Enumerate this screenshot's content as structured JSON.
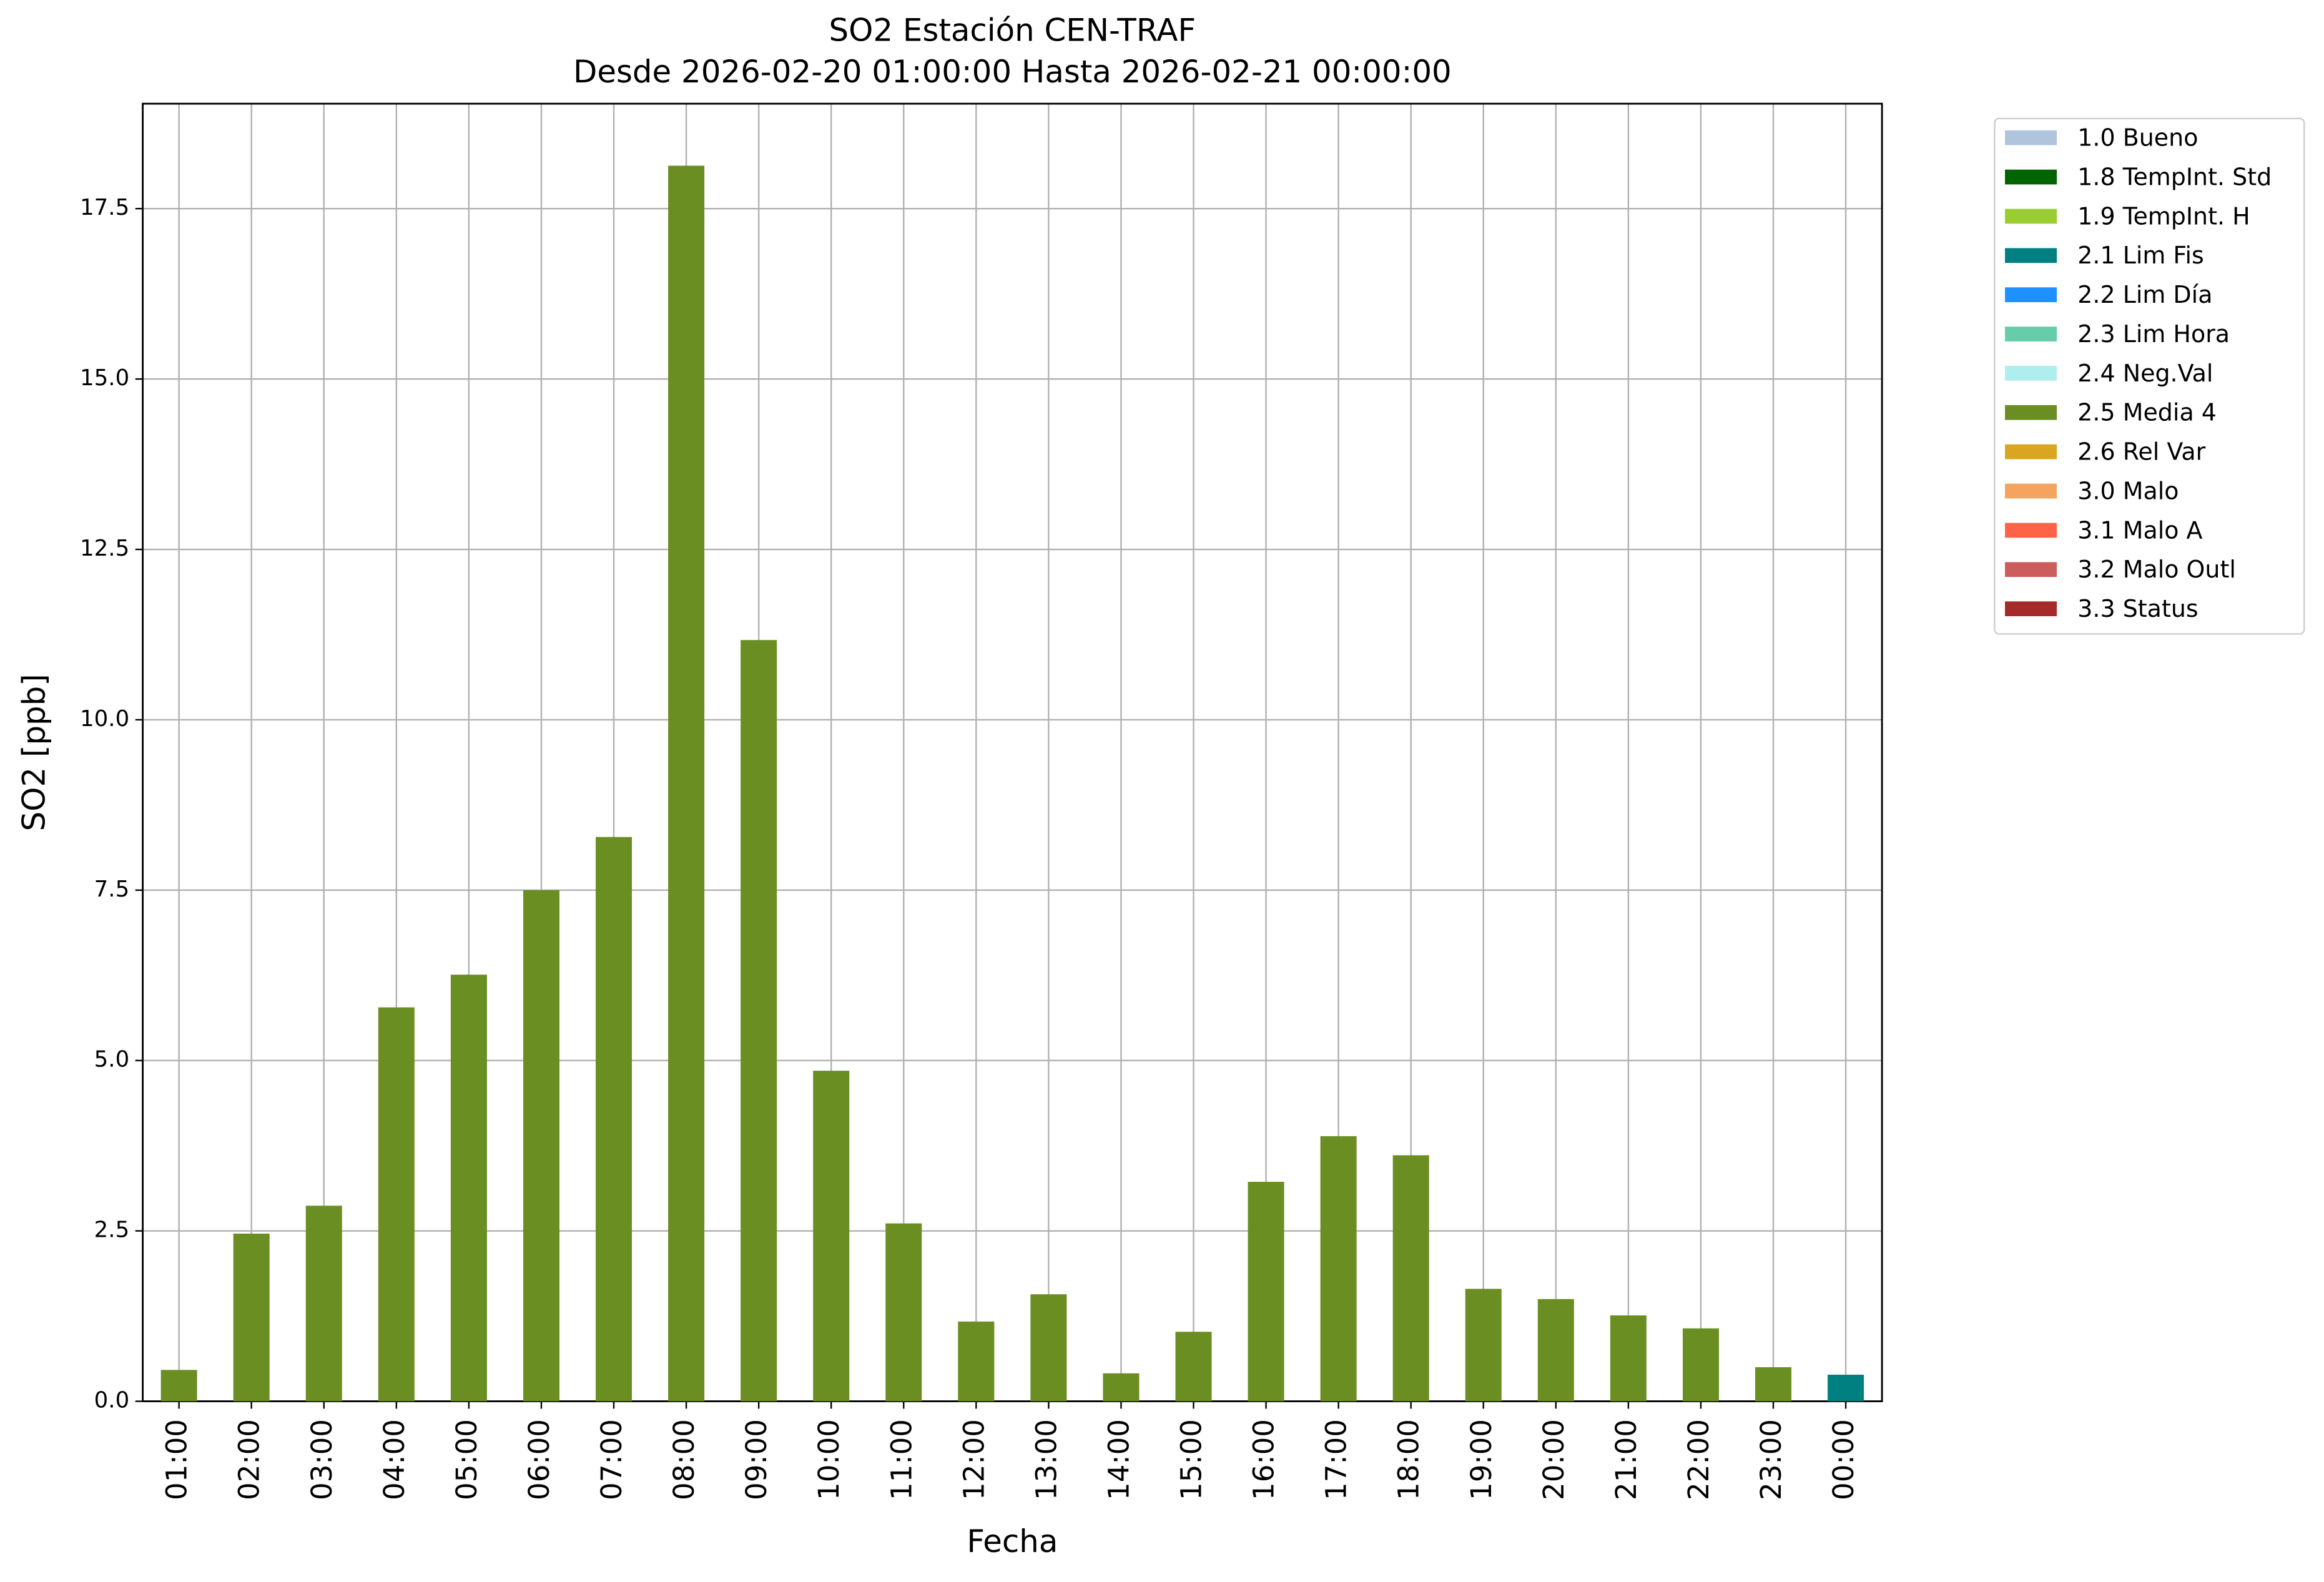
{
  "chart_data": {
    "type": "bar",
    "title": "SO2 Estación CEN-TRAF",
    "subtitle": "Desde 2026-02-20 01:00:00 Hasta 2026-02-21 00:00:00",
    "x_label": "Fecha",
    "y_label": "SO2 [ppb]",
    "categories": [
      "01:00",
      "02:00",
      "03:00",
      "04:00",
      "05:00",
      "06:00",
      "07:00",
      "08:00",
      "09:00",
      "10:00",
      "11:00",
      "12:00",
      "13:00",
      "14:00",
      "15:00",
      "16:00",
      "17:00",
      "18:00",
      "19:00",
      "20:00",
      "21:00",
      "22:00",
      "23:00",
      "00:00"
    ],
    "series": [
      {
        "name": "1.0 Bueno",
        "color": "#b0c4de",
        "values": [
          null,
          null,
          null,
          null,
          null,
          null,
          null,
          null,
          null,
          null,
          null,
          null,
          null,
          null,
          null,
          null,
          null,
          null,
          null,
          null,
          null,
          null,
          null,
          null
        ]
      },
      {
        "name": "1.8 TempInt. Std",
        "color": "#006400",
        "values": [
          null,
          null,
          null,
          null,
          null,
          null,
          null,
          null,
          null,
          null,
          null,
          null,
          null,
          null,
          null,
          null,
          null,
          null,
          null,
          null,
          null,
          null,
          null,
          null
        ]
      },
      {
        "name": "1.9 TempInt. H",
        "color": "#9acd32",
        "values": [
          null,
          null,
          null,
          null,
          null,
          null,
          null,
          null,
          null,
          null,
          null,
          null,
          null,
          null,
          null,
          null,
          null,
          null,
          null,
          null,
          null,
          null,
          null,
          null
        ]
      },
      {
        "name": "2.1 Lim Fis",
        "color": "#008080",
        "values": [
          null,
          null,
          null,
          null,
          null,
          null,
          null,
          null,
          null,
          null,
          null,
          null,
          null,
          null,
          null,
          null,
          null,
          null,
          null,
          null,
          null,
          null,
          null,
          0.39
        ]
      },
      {
        "name": "2.2 Lim Día",
        "color": "#1e90ff",
        "values": [
          null,
          null,
          null,
          null,
          null,
          null,
          null,
          null,
          null,
          null,
          null,
          null,
          null,
          null,
          null,
          null,
          null,
          null,
          null,
          null,
          null,
          null,
          null,
          null
        ]
      },
      {
        "name": "2.3 Lim Hora",
        "color": "#66cdaa",
        "values": [
          null,
          null,
          null,
          null,
          null,
          null,
          null,
          null,
          null,
          null,
          null,
          null,
          null,
          null,
          null,
          null,
          null,
          null,
          null,
          null,
          null,
          null,
          null,
          null
        ]
      },
      {
        "name": "2.4 Neg.Val",
        "color": "#afeeee",
        "values": [
          null,
          null,
          null,
          null,
          null,
          null,
          null,
          null,
          null,
          null,
          null,
          null,
          null,
          null,
          null,
          null,
          null,
          null,
          null,
          null,
          null,
          null,
          null,
          null
        ]
      },
      {
        "name": "2.5 Media 4",
        "color": "#6b8e23",
        "values": [
          0.46,
          2.46,
          2.87,
          5.78,
          6.26,
          7.5,
          8.28,
          18.13,
          11.17,
          4.85,
          2.61,
          1.17,
          1.57,
          0.41,
          1.02,
          3.22,
          3.89,
          3.61,
          1.65,
          1.5,
          1.26,
          1.07,
          0.5,
          null
        ]
      },
      {
        "name": "2.6 Rel Var",
        "color": "#daa520",
        "values": [
          null,
          null,
          null,
          null,
          null,
          null,
          null,
          null,
          null,
          null,
          null,
          null,
          null,
          null,
          null,
          null,
          null,
          null,
          null,
          null,
          null,
          null,
          null,
          null
        ]
      },
      {
        "name": "3.0 Malo",
        "color": "#f4a460",
        "values": [
          null,
          null,
          null,
          null,
          null,
          null,
          null,
          null,
          null,
          null,
          null,
          null,
          null,
          null,
          null,
          null,
          null,
          null,
          null,
          null,
          null,
          null,
          null,
          null
        ]
      },
      {
        "name": "3.1 Malo A",
        "color": "#ff6347",
        "values": [
          null,
          null,
          null,
          null,
          null,
          null,
          null,
          null,
          null,
          null,
          null,
          null,
          null,
          null,
          null,
          null,
          null,
          null,
          null,
          null,
          null,
          null,
          null,
          null
        ]
      },
      {
        "name": "3.2 Malo Outl",
        "color": "#cd5c5c",
        "values": [
          null,
          null,
          null,
          null,
          null,
          null,
          null,
          null,
          null,
          null,
          null,
          null,
          null,
          null,
          null,
          null,
          null,
          null,
          null,
          null,
          null,
          null,
          null,
          null
        ]
      },
      {
        "name": "3.3 Status",
        "color": "#a52a2a",
        "values": [
          null,
          null,
          null,
          null,
          null,
          null,
          null,
          null,
          null,
          null,
          null,
          null,
          null,
          null,
          null,
          null,
          null,
          null,
          null,
          null,
          null,
          null,
          null,
          null
        ]
      }
    ],
    "ylim": [
      0,
      19.04
    ],
    "yticks": [
      {
        "value": 0,
        "label": "0.0"
      },
      2.5,
      {
        "value": 5,
        "label": "5.0"
      },
      7.5,
      {
        "value": 10,
        "label": "10.0"
      },
      12.5,
      {
        "value": 15,
        "label": "15.0"
      },
      17.5
    ],
    "grid": true,
    "legend": "outside-upper-right"
  }
}
